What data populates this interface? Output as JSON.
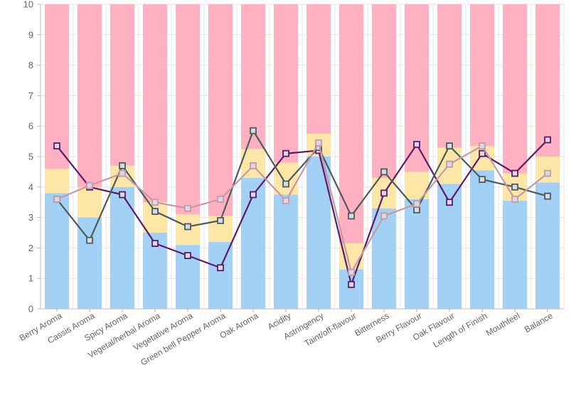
{
  "chart_data": {
    "type": "bar",
    "stacked": true,
    "categories": [
      "Berry Aroma",
      "Cassis Aroma",
      "Spicy Aroma",
      "Vegetal/herbal Aroma",
      "Vegetative Aroma",
      "Green bell Pepper Aroma",
      "Oak Aroma",
      "Acidity",
      "Astringency",
      "Taint/off-flavour",
      "Bitterness",
      "Berry Flavour",
      "Oak Flavour",
      "Length of Finish",
      "Mouthfeel",
      "Balance"
    ],
    "y_ticks": [
      "0",
      "1",
      "2",
      "3",
      "4",
      "5",
      "6",
      "7",
      "8",
      "9",
      "10"
    ],
    "ylim": [
      0,
      10
    ],
    "grid": true,
    "bar_series": [
      {
        "values": [
          3.8,
          3.0,
          4.0,
          2.5,
          2.1,
          2.2,
          4.3,
          3.75,
          5.0,
          1.3,
          3.3,
          3.6,
          4.1,
          4.55,
          3.55,
          4.15
        ],
        "color": "#a3d1f5"
      },
      {
        "values": [
          0.8,
          1.0,
          0.7,
          1.0,
          1.0,
          0.85,
          0.95,
          1.05,
          0.75,
          0.85,
          1.0,
          0.9,
          1.2,
          0.8,
          0.9,
          0.85
        ],
        "color": "#fde6a6"
      },
      {
        "values": [
          5.4,
          6.0,
          5.3,
          6.5,
          6.9,
          6.95,
          4.75,
          5.2,
          4.25,
          7.85,
          5.7,
          5.5,
          4.7,
          4.65,
          5.55,
          5.0
        ],
        "color": "#ffb0c1"
      }
    ],
    "line_series": [
      {
        "values": [
          5.35,
          4.0,
          3.75,
          2.15,
          1.75,
          1.35,
          3.75,
          5.1,
          5.2,
          0.8,
          3.8,
          5.4,
          3.5,
          5.1,
          4.45,
          5.55
        ],
        "color": "#5c1a6e"
      },
      {
        "values": [
          3.6,
          2.25,
          4.7,
          3.2,
          2.7,
          2.9,
          5.85,
          4.1,
          5.3,
          3.05,
          4.5,
          3.25,
          5.35,
          4.25,
          4.0,
          3.7
        ],
        "color": "#4a5c5c"
      },
      {
        "values": [
          3.6,
          4.05,
          4.45,
          3.5,
          3.3,
          3.6,
          4.7,
          3.55,
          5.45,
          1.2,
          3.05,
          3.45,
          4.75,
          5.35,
          3.6,
          4.45
        ],
        "color": "#c59aa6"
      }
    ],
    "colors": {
      "grid": "#e6e6e6",
      "axis": "#bdbdbd",
      "tick_label": "#666666"
    }
  }
}
